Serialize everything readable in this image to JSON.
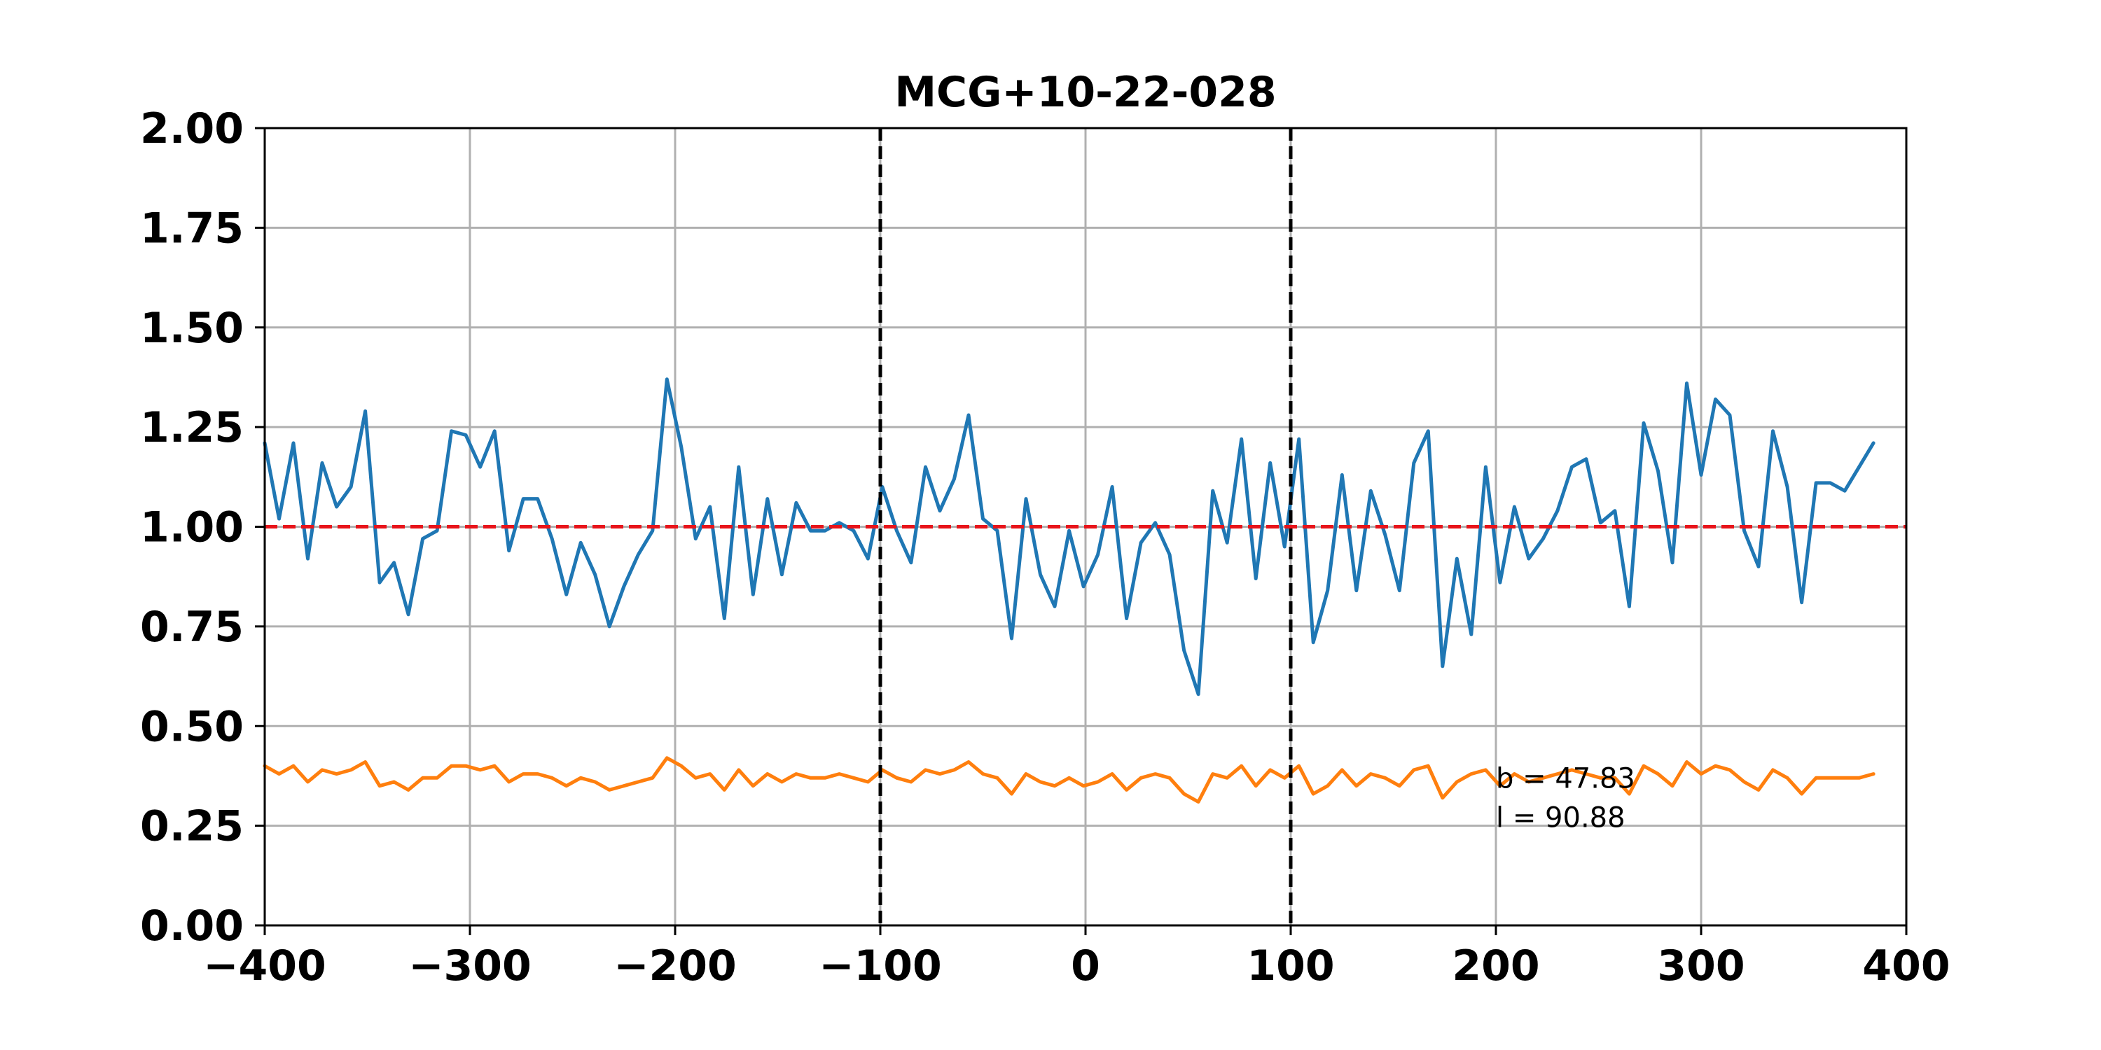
{
  "chart_data": {
    "type": "line",
    "title": "MCG+10-22-028",
    "xlabel": "",
    "ylabel": "",
    "xlim": [
      -400,
      400
    ],
    "ylim": [
      0.0,
      2.0
    ],
    "x_ticks": [
      "−400",
      "−300",
      "−200",
      "−100",
      "0",
      "100",
      "200",
      "300",
      "400"
    ],
    "x_tick_values": [
      -400,
      -300,
      -200,
      -100,
      0,
      100,
      200,
      300,
      400
    ],
    "y_ticks": [
      "0.00",
      "0.25",
      "0.50",
      "0.75",
      "1.00",
      "1.25",
      "1.50",
      "1.75",
      "2.00"
    ],
    "y_tick_values": [
      0.0,
      0.25,
      0.5,
      0.75,
      1.0,
      1.25,
      1.5,
      1.75,
      2.0
    ],
    "grid": true,
    "x_start": -400,
    "x_step": 7,
    "series": [
      {
        "color": "#1f77b4",
        "values": [
          1.21,
          1.02,
          1.21,
          0.92,
          1.16,
          1.05,
          1.1,
          1.29,
          0.86,
          0.91,
          0.78,
          0.97,
          0.99,
          1.24,
          1.23,
          1.15,
          1.24,
          0.94,
          1.07,
          1.07,
          0.97,
          0.83,
          0.96,
          0.88,
          0.75,
          0.85,
          0.93,
          0.99,
          1.37,
          1.2,
          0.97,
          1.05,
          0.77,
          1.15,
          0.83,
          1.07,
          0.88,
          1.06,
          0.99,
          0.99,
          1.01,
          0.99,
          0.92,
          1.1,
          0.99,
          0.91,
          1.15,
          1.04,
          1.12,
          1.28,
          1.02,
          0.99,
          0.72,
          1.07,
          0.88,
          0.8,
          0.99,
          0.85,
          0.93,
          1.1,
          0.77,
          0.96,
          1.01,
          0.93,
          0.69,
          0.58,
          1.09,
          0.96,
          1.22,
          0.87,
          1.16,
          0.95,
          1.22,
          0.71,
          0.84,
          1.13,
          0.84,
          1.09,
          0.98,
          0.84,
          1.16,
          1.24,
          0.65,
          0.92,
          0.73,
          1.15,
          0.86,
          1.05,
          0.92,
          0.97,
          1.04,
          1.15,
          1.17,
          1.01,
          1.04,
          0.8,
          1.26,
          1.14,
          0.91,
          1.36,
          1.13,
          1.32,
          1.28,
          0.99,
          0.9,
          1.24,
          1.1,
          0.81,
          1.11,
          1.11,
          1.09,
          1.15,
          1.21
        ]
      },
      {
        "color": "#ff7f0e",
        "values": [
          0.4,
          0.38,
          0.4,
          0.36,
          0.39,
          0.38,
          0.39,
          0.41,
          0.35,
          0.36,
          0.34,
          0.37,
          0.37,
          0.4,
          0.4,
          0.39,
          0.4,
          0.36,
          0.38,
          0.38,
          0.37,
          0.35,
          0.37,
          0.36,
          0.34,
          0.35,
          0.36,
          0.37,
          0.42,
          0.4,
          0.37,
          0.38,
          0.34,
          0.39,
          0.35,
          0.38,
          0.36,
          0.38,
          0.37,
          0.37,
          0.38,
          0.37,
          0.36,
          0.39,
          0.37,
          0.36,
          0.39,
          0.38,
          0.39,
          0.41,
          0.38,
          0.37,
          0.33,
          0.38,
          0.36,
          0.35,
          0.37,
          0.35,
          0.36,
          0.38,
          0.34,
          0.37,
          0.38,
          0.37,
          0.33,
          0.31,
          0.38,
          0.37,
          0.4,
          0.35,
          0.39,
          0.37,
          0.4,
          0.33,
          0.35,
          0.39,
          0.35,
          0.38,
          0.37,
          0.35,
          0.39,
          0.4,
          0.32,
          0.36,
          0.38,
          0.39,
          0.35,
          0.38,
          0.36,
          0.37,
          0.38,
          0.39,
          0.38,
          0.37,
          0.37,
          0.33,
          0.4,
          0.38,
          0.35,
          0.41,
          0.38,
          0.4,
          0.39,
          0.36,
          0.34,
          0.39,
          0.37,
          0.33,
          0.37,
          0.37,
          0.37,
          0.37,
          0.38
        ]
      }
    ],
    "reference_lines": [
      {
        "orientation": "horizontal",
        "value": 1.0,
        "style": "dashed",
        "color": "#e8141a"
      },
      {
        "orientation": "vertical",
        "value": -100,
        "style": "dashed",
        "color": "#000000"
      },
      {
        "orientation": "vertical",
        "value": 100,
        "style": "dashed",
        "color": "#000000"
      }
    ],
    "annotations": [
      "b = 47.83",
      "l = 90.88"
    ],
    "annotation_anchor": {
      "x": 200,
      "y": 0.37
    }
  }
}
